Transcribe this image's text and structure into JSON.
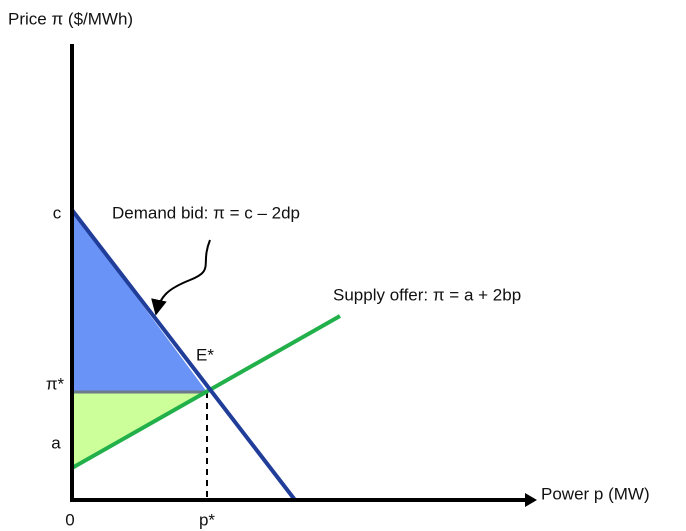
{
  "axes": {
    "y_label": "Price π ($/MWh)",
    "x_label": "Power p (MW)",
    "origin": "0"
  },
  "points": {
    "c": "c",
    "pi_star": "π*",
    "a": "a",
    "p_star": "p*",
    "equilibrium": "E*"
  },
  "curves": {
    "demand": "Demand bid:  π = c – 2dp",
    "supply": "Supply offer:  π = a + 2bp"
  }
}
